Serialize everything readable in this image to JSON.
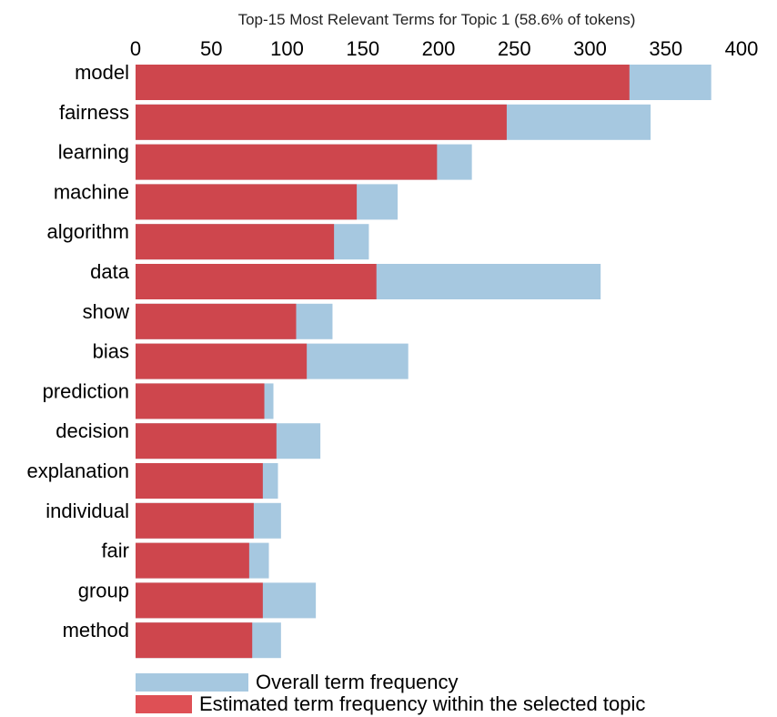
{
  "chart_data": {
    "type": "bar",
    "orientation": "horizontal",
    "title": "Top-15 Most Relevant Terms for Topic 1 (58.6% of tokens)",
    "x_axis_position": "top",
    "xlim": [
      0,
      400
    ],
    "x_ticks": [
      "0",
      "50",
      "100",
      "150",
      "200",
      "250",
      "300",
      "350",
      "400"
    ],
    "grid": false,
    "categories": [
      "model",
      "fairness",
      "learning",
      "machine",
      "algorithm",
      "data",
      "show",
      "bias",
      "prediction",
      "decision",
      "explanation",
      "individual",
      "fair",
      "group",
      "method"
    ],
    "series": [
      {
        "name": "Overall term frequency",
        "color": "#a6c8e0",
        "values": [
          380,
          340,
          222,
          173,
          154,
          307,
          130,
          180,
          91,
          122,
          94,
          96,
          88,
          119,
          96
        ]
      },
      {
        "name": "Estimated term frequency within the selected topic",
        "color": "#ce464d",
        "values": [
          326,
          245,
          199,
          146,
          131,
          159,
          106,
          113,
          85,
          93,
          84,
          78,
          75,
          84,
          77
        ]
      }
    ],
    "legend_position": "bottom-left"
  },
  "colors": {
    "overall": "#a6c8e0",
    "topic": "#ce464d",
    "legend_topic": "#de5055"
  }
}
